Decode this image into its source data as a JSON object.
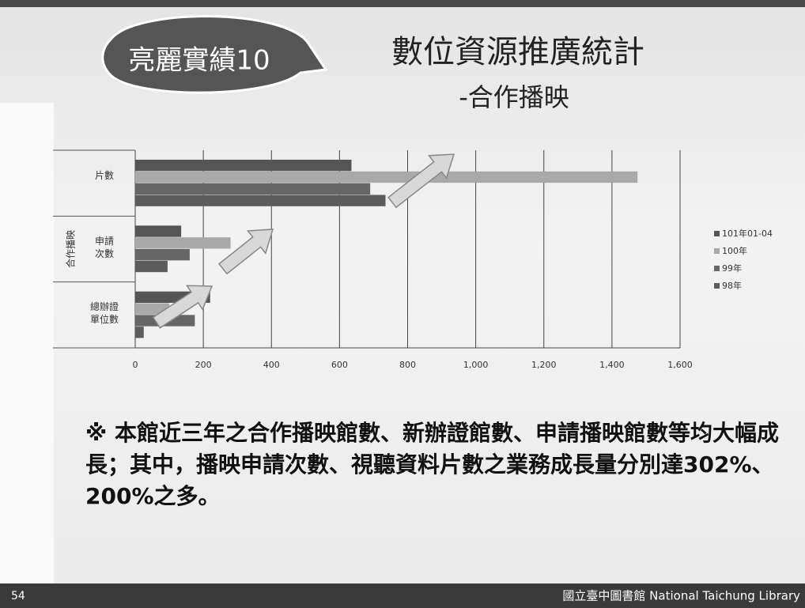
{
  "slide": {
    "badge": "亮麗實績10",
    "title": "數位資源推廣統計",
    "subtitle": "-合作播映",
    "note": "※ 本館近三年之合作播映館數、新辦證館數、申請播映館數等均大幅成長；其中，播映申請次數、視聽資料片數之業務成長量分別達302%、200%之多。",
    "page_number": "54",
    "footer": "國立臺中圖書館 National Taichung Library"
  },
  "chart_data": {
    "type": "hbar",
    "y_label": "合作播映",
    "categories": [
      "片數",
      "申請\n次數",
      "總辦證\n單位數"
    ],
    "series": [
      {
        "name": "101年01-04",
        "color": "#555555",
        "values": [
          635,
          135,
          220
        ]
      },
      {
        "name": "100年",
        "color": "#a9a9a9",
        "values": [
          1475,
          280,
          100
        ]
      },
      {
        "name": "99年",
        "color": "#666666",
        "values": [
          690,
          160,
          175
        ]
      },
      {
        "name": "98年",
        "color": "#5c5c5c",
        "values": [
          735,
          95,
          25
        ]
      }
    ],
    "xlim": [
      0,
      1600
    ],
    "xticks": [
      0,
      200,
      400,
      600,
      800,
      {
        "value": 1000,
        "label": "1,000"
      },
      {
        "value": 1200,
        "label": "1,200"
      },
      {
        "value": 1400,
        "label": "1,400"
      },
      {
        "value": 1600,
        "label": "1,600"
      }
    ],
    "grid": true,
    "legend": "right"
  }
}
